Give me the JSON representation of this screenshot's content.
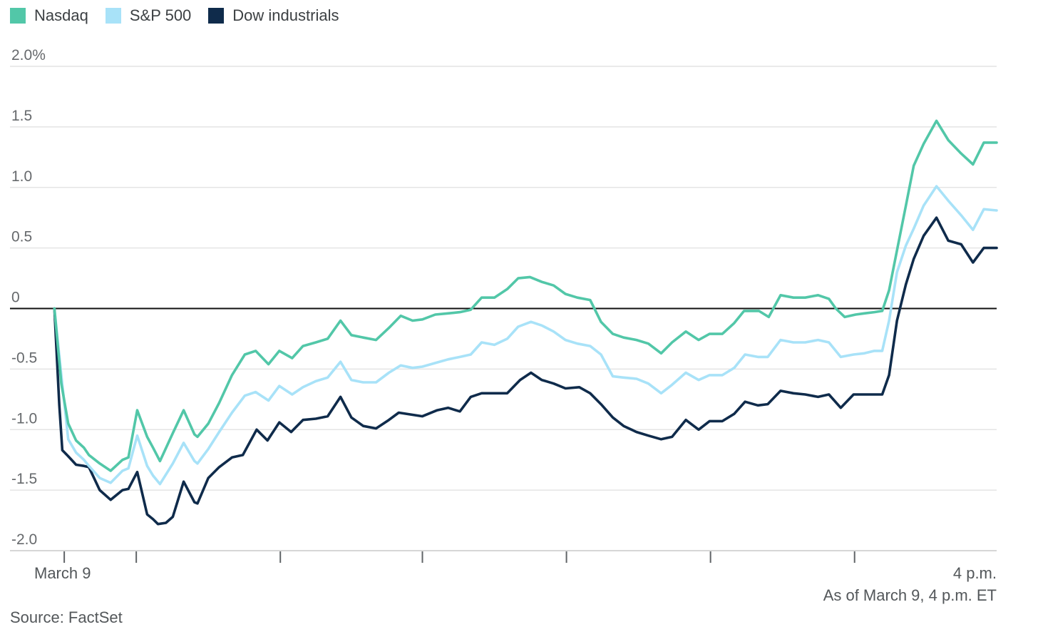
{
  "legend": {
    "items": [
      {
        "label": "Nasdaq",
        "color": "#52c7a8"
      },
      {
        "label": "S&P 500",
        "color": "#a8e2f8"
      },
      {
        "label": "Dow industrials",
        "color": "#0f2b4b"
      }
    ]
  },
  "footer": {
    "source": "Source: FactSet",
    "as_of": "As of March 9, 4 p.m. ET"
  },
  "chart_data": {
    "type": "line",
    "grid": true,
    "legend_position": "top-left",
    "ylim": [
      -2.0,
      2.0
    ],
    "yticks": [
      {
        "value": 2.0,
        "label": "2.0%"
      },
      {
        "value": 1.5,
        "label": "1.5"
      },
      {
        "value": 1.0,
        "label": "1.0"
      },
      {
        "value": 0.5,
        "label": "0.5"
      },
      {
        "value": 0.0,
        "label": "0"
      },
      {
        "value": -0.5,
        "label": "-0.5"
      },
      {
        "value": -1.0,
        "label": "-1.0"
      },
      {
        "value": -1.5,
        "label": "-1.5"
      },
      {
        "value": -2.0,
        "label": "-2.0"
      }
    ],
    "zero_line": true,
    "x_domain": "fraction of trading session, March 9, 9:30 a.m. to 4 p.m. ET",
    "xticks": [
      0.055,
      0.128,
      0.274,
      0.418,
      0.564,
      0.71,
      0.856
    ],
    "x_start_label": "March 9",
    "x_end_label": "4 p.m.",
    "colors": {
      "grid": "#e4e4e4",
      "axis": "#c9c9c9",
      "zero": "#111111",
      "tick": "#606467",
      "ylabel": "#66696c"
    },
    "series": [
      {
        "name": "Nasdaq",
        "color": "#52c7a8",
        "points": [
          [
            0.045,
            0.0
          ],
          [
            0.052,
            -0.62
          ],
          [
            0.059,
            -0.95
          ],
          [
            0.067,
            -1.09
          ],
          [
            0.075,
            -1.15
          ],
          [
            0.08,
            -1.21
          ],
          [
            0.091,
            -1.28
          ],
          [
            0.102,
            -1.34
          ],
          [
            0.114,
            -1.25
          ],
          [
            0.12,
            -1.23
          ],
          [
            0.129,
            -0.84
          ],
          [
            0.139,
            -1.06
          ],
          [
            0.145,
            -1.15
          ],
          [
            0.152,
            -1.26
          ],
          [
            0.165,
            -1.03
          ],
          [
            0.176,
            -0.84
          ],
          [
            0.187,
            -1.04
          ],
          [
            0.19,
            -1.06
          ],
          [
            0.201,
            -0.95
          ],
          [
            0.212,
            -0.78
          ],
          [
            0.225,
            -0.55
          ],
          [
            0.238,
            -0.38
          ],
          [
            0.249,
            -0.35
          ],
          [
            0.262,
            -0.46
          ],
          [
            0.273,
            -0.35
          ],
          [
            0.286,
            -0.41
          ],
          [
            0.297,
            -0.31
          ],
          [
            0.31,
            -0.28
          ],
          [
            0.322,
            -0.25
          ],
          [
            0.335,
            -0.1
          ],
          [
            0.346,
            -0.22
          ],
          [
            0.358,
            -0.24
          ],
          [
            0.371,
            -0.26
          ],
          [
            0.384,
            -0.16
          ],
          [
            0.396,
            -0.06
          ],
          [
            0.408,
            -0.1
          ],
          [
            0.418,
            -0.09
          ],
          [
            0.431,
            -0.05
          ],
          [
            0.444,
            -0.04
          ],
          [
            0.456,
            -0.03
          ],
          [
            0.467,
            -0.01
          ],
          [
            0.478,
            0.09
          ],
          [
            0.491,
            0.09
          ],
          [
            0.504,
            0.16
          ],
          [
            0.515,
            0.25
          ],
          [
            0.527,
            0.26
          ],
          [
            0.539,
            0.22
          ],
          [
            0.551,
            0.19
          ],
          [
            0.563,
            0.12
          ],
          [
            0.575,
            0.09
          ],
          [
            0.588,
            0.07
          ],
          [
            0.599,
            -0.11
          ],
          [
            0.611,
            -0.21
          ],
          [
            0.622,
            -0.24
          ],
          [
            0.635,
            -0.26
          ],
          [
            0.647,
            -0.29
          ],
          [
            0.66,
            -0.37
          ],
          [
            0.671,
            -0.28
          ],
          [
            0.685,
            -0.19
          ],
          [
            0.698,
            -0.26
          ],
          [
            0.709,
            -0.21
          ],
          [
            0.722,
            -0.21
          ],
          [
            0.734,
            -0.12
          ],
          [
            0.744,
            -0.02
          ],
          [
            0.759,
            -0.02
          ],
          [
            0.769,
            -0.07
          ],
          [
            0.781,
            0.11
          ],
          [
            0.794,
            0.09
          ],
          [
            0.806,
            0.09
          ],
          [
            0.819,
            0.11
          ],
          [
            0.83,
            0.08
          ],
          [
            0.837,
            0.0
          ],
          [
            0.846,
            -0.07
          ],
          [
            0.857,
            -0.05
          ],
          [
            0.866,
            -0.04
          ],
          [
            0.876,
            -0.03
          ],
          [
            0.884,
            -0.02
          ],
          [
            0.891,
            0.15
          ],
          [
            0.899,
            0.48
          ],
          [
            0.908,
            0.85
          ],
          [
            0.916,
            1.18
          ],
          [
            0.926,
            1.36
          ],
          [
            0.939,
            1.55
          ],
          [
            0.951,
            1.39
          ],
          [
            0.964,
            1.28
          ],
          [
            0.976,
            1.19
          ],
          [
            0.987,
            1.37
          ],
          [
            1.0,
            1.37
          ]
        ]
      },
      {
        "name": "S&P 500",
        "color": "#a8e2f8",
        "points": [
          [
            0.045,
            0.0
          ],
          [
            0.052,
            -0.55
          ],
          [
            0.059,
            -1.08
          ],
          [
            0.067,
            -1.19
          ],
          [
            0.075,
            -1.25
          ],
          [
            0.08,
            -1.3
          ],
          [
            0.091,
            -1.4
          ],
          [
            0.102,
            -1.44
          ],
          [
            0.114,
            -1.34
          ],
          [
            0.12,
            -1.32
          ],
          [
            0.129,
            -1.05
          ],
          [
            0.139,
            -1.3
          ],
          [
            0.145,
            -1.38
          ],
          [
            0.152,
            -1.45
          ],
          [
            0.165,
            -1.28
          ],
          [
            0.176,
            -1.11
          ],
          [
            0.187,
            -1.26
          ],
          [
            0.19,
            -1.28
          ],
          [
            0.201,
            -1.16
          ],
          [
            0.212,
            -1.02
          ],
          [
            0.225,
            -0.86
          ],
          [
            0.238,
            -0.72
          ],
          [
            0.249,
            -0.69
          ],
          [
            0.262,
            -0.76
          ],
          [
            0.273,
            -0.64
          ],
          [
            0.286,
            -0.71
          ],
          [
            0.297,
            -0.65
          ],
          [
            0.31,
            -0.6
          ],
          [
            0.322,
            -0.57
          ],
          [
            0.335,
            -0.44
          ],
          [
            0.346,
            -0.59
          ],
          [
            0.358,
            -0.61
          ],
          [
            0.371,
            -0.61
          ],
          [
            0.384,
            -0.53
          ],
          [
            0.396,
            -0.47
          ],
          [
            0.408,
            -0.49
          ],
          [
            0.418,
            -0.48
          ],
          [
            0.431,
            -0.45
          ],
          [
            0.444,
            -0.42
          ],
          [
            0.456,
            -0.4
          ],
          [
            0.467,
            -0.38
          ],
          [
            0.478,
            -0.28
          ],
          [
            0.491,
            -0.3
          ],
          [
            0.504,
            -0.25
          ],
          [
            0.515,
            -0.15
          ],
          [
            0.528,
            -0.11
          ],
          [
            0.539,
            -0.14
          ],
          [
            0.551,
            -0.19
          ],
          [
            0.563,
            -0.26
          ],
          [
            0.575,
            -0.29
          ],
          [
            0.588,
            -0.31
          ],
          [
            0.599,
            -0.38
          ],
          [
            0.611,
            -0.56
          ],
          [
            0.622,
            -0.57
          ],
          [
            0.635,
            -0.58
          ],
          [
            0.647,
            -0.62
          ],
          [
            0.66,
            -0.7
          ],
          [
            0.671,
            -0.63
          ],
          [
            0.685,
            -0.53
          ],
          [
            0.698,
            -0.59
          ],
          [
            0.709,
            -0.55
          ],
          [
            0.722,
            -0.55
          ],
          [
            0.734,
            -0.49
          ],
          [
            0.745,
            -0.38
          ],
          [
            0.758,
            -0.4
          ],
          [
            0.768,
            -0.4
          ],
          [
            0.781,
            -0.26
          ],
          [
            0.794,
            -0.28
          ],
          [
            0.806,
            -0.28
          ],
          [
            0.819,
            -0.26
          ],
          [
            0.83,
            -0.28
          ],
          [
            0.842,
            -0.4
          ],
          [
            0.855,
            -0.38
          ],
          [
            0.866,
            -0.37
          ],
          [
            0.876,
            -0.35
          ],
          [
            0.884,
            -0.35
          ],
          [
            0.891,
            -0.1
          ],
          [
            0.899,
            0.3
          ],
          [
            0.908,
            0.52
          ],
          [
            0.916,
            0.66
          ],
          [
            0.926,
            0.85
          ],
          [
            0.939,
            1.01
          ],
          [
            0.951,
            0.89
          ],
          [
            0.964,
            0.77
          ],
          [
            0.976,
            0.65
          ],
          [
            0.987,
            0.82
          ],
          [
            1.0,
            0.81
          ]
        ]
      },
      {
        "name": "Dow industrials",
        "color": "#0f2b4b",
        "points": [
          [
            0.045,
            0.0
          ],
          [
            0.05,
            -0.8
          ],
          [
            0.053,
            -1.17
          ],
          [
            0.059,
            -1.22
          ],
          [
            0.067,
            -1.29
          ],
          [
            0.075,
            -1.3
          ],
          [
            0.08,
            -1.31
          ],
          [
            0.091,
            -1.5
          ],
          [
            0.102,
            -1.58
          ],
          [
            0.114,
            -1.5
          ],
          [
            0.12,
            -1.49
          ],
          [
            0.129,
            -1.35
          ],
          [
            0.139,
            -1.7
          ],
          [
            0.145,
            -1.74
          ],
          [
            0.15,
            -1.78
          ],
          [
            0.158,
            -1.77
          ],
          [
            0.165,
            -1.72
          ],
          [
            0.176,
            -1.43
          ],
          [
            0.187,
            -1.6
          ],
          [
            0.19,
            -1.61
          ],
          [
            0.201,
            -1.4
          ],
          [
            0.212,
            -1.31
          ],
          [
            0.225,
            -1.23
          ],
          [
            0.236,
            -1.21
          ],
          [
            0.25,
            -1.0
          ],
          [
            0.261,
            -1.09
          ],
          [
            0.273,
            -0.94
          ],
          [
            0.285,
            -1.02
          ],
          [
            0.297,
            -0.92
          ],
          [
            0.31,
            -0.91
          ],
          [
            0.322,
            -0.89
          ],
          [
            0.335,
            -0.73
          ],
          [
            0.346,
            -0.9
          ],
          [
            0.358,
            -0.97
          ],
          [
            0.371,
            -0.99
          ],
          [
            0.384,
            -0.92
          ],
          [
            0.394,
            -0.86
          ],
          [
            0.418,
            -0.89
          ],
          [
            0.433,
            -0.84
          ],
          [
            0.444,
            -0.82
          ],
          [
            0.456,
            -0.85
          ],
          [
            0.467,
            -0.73
          ],
          [
            0.478,
            -0.7
          ],
          [
            0.491,
            -0.7
          ],
          [
            0.504,
            -0.7
          ],
          [
            0.517,
            -0.59
          ],
          [
            0.528,
            -0.53
          ],
          [
            0.539,
            -0.59
          ],
          [
            0.551,
            -0.62
          ],
          [
            0.563,
            -0.66
          ],
          [
            0.577,
            -0.65
          ],
          [
            0.588,
            -0.7
          ],
          [
            0.599,
            -0.79
          ],
          [
            0.611,
            -0.9
          ],
          [
            0.622,
            -0.97
          ],
          [
            0.635,
            -1.02
          ],
          [
            0.647,
            -1.05
          ],
          [
            0.66,
            -1.08
          ],
          [
            0.671,
            -1.06
          ],
          [
            0.685,
            -0.92
          ],
          [
            0.698,
            -1.0
          ],
          [
            0.709,
            -0.93
          ],
          [
            0.722,
            -0.93
          ],
          [
            0.734,
            -0.87
          ],
          [
            0.745,
            -0.77
          ],
          [
            0.758,
            -0.8
          ],
          [
            0.768,
            -0.79
          ],
          [
            0.781,
            -0.68
          ],
          [
            0.794,
            -0.7
          ],
          [
            0.806,
            -0.71
          ],
          [
            0.819,
            -0.73
          ],
          [
            0.83,
            -0.71
          ],
          [
            0.842,
            -0.82
          ],
          [
            0.855,
            -0.71
          ],
          [
            0.866,
            -0.71
          ],
          [
            0.876,
            -0.71
          ],
          [
            0.884,
            -0.71
          ],
          [
            0.891,
            -0.55
          ],
          [
            0.899,
            -0.1
          ],
          [
            0.908,
            0.2
          ],
          [
            0.916,
            0.41
          ],
          [
            0.926,
            0.6
          ],
          [
            0.939,
            0.75
          ],
          [
            0.951,
            0.56
          ],
          [
            0.964,
            0.53
          ],
          [
            0.976,
            0.38
          ],
          [
            0.987,
            0.5
          ],
          [
            1.0,
            0.5
          ]
        ]
      }
    ]
  }
}
